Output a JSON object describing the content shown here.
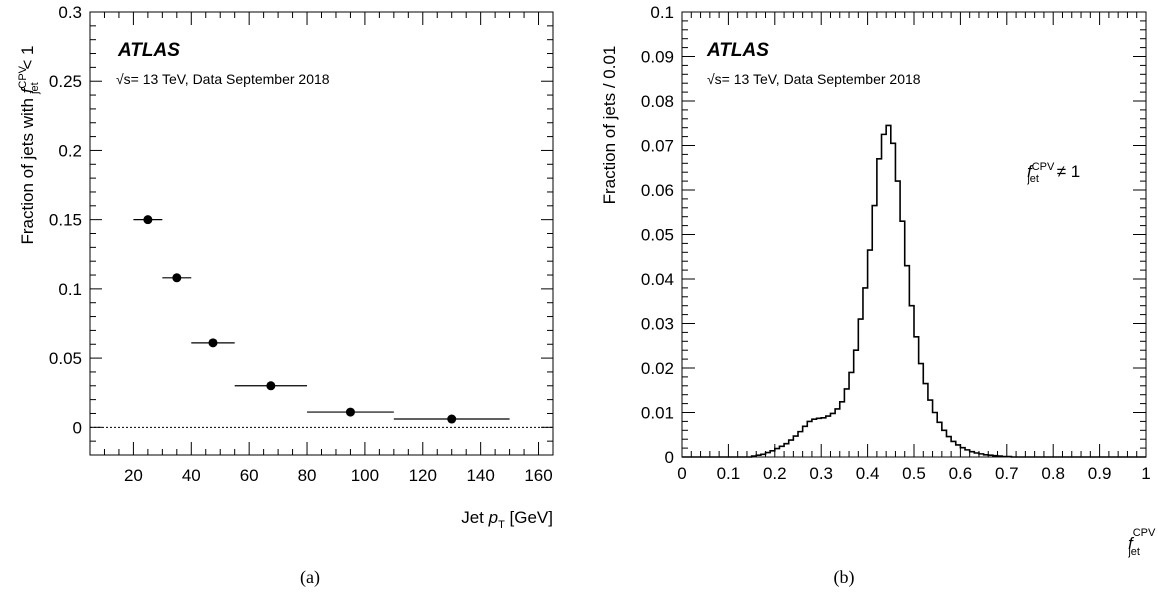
{
  "chart_data": [
    {
      "type": "scatter",
      "caption": "(a)",
      "experiment": "ATLAS",
      "info": "√s= 13 TeV, Data September 2018",
      "xlabel": {
        "main": "Jet ",
        "var": "p",
        "sub": "T",
        "unit": " [GeV]"
      },
      "ylabel": {
        "pre": "Fraction of jets with ",
        "var": "f",
        "sup": "CPV",
        "sub": "jet",
        "post": " < 1"
      },
      "xlim": [
        5,
        165
      ],
      "ylim": [
        -0.02,
        0.3
      ],
      "xticks": [
        20,
        40,
        60,
        80,
        100,
        120,
        140,
        160
      ],
      "yticks": [
        0,
        0.05,
        0.1,
        0.15,
        0.2,
        0.25,
        0.3
      ],
      "ytick_labels": [
        "0",
        "0.05",
        "0.1",
        "0.15",
        "0.2",
        "0.25",
        "0.3"
      ],
      "reference_line_y": 0,
      "points": [
        {
          "x": 25,
          "xerr": [
            20,
            30
          ],
          "y": 0.15
        },
        {
          "x": 35,
          "xerr": [
            30,
            40
          ],
          "y": 0.108
        },
        {
          "x": 47.5,
          "xerr": [
            40,
            55
          ],
          "y": 0.061
        },
        {
          "x": 67.5,
          "xerr": [
            55,
            80
          ],
          "y": 0.03
        },
        {
          "x": 95,
          "xerr": [
            80,
            110
          ],
          "y": 0.011
        },
        {
          "x": 130,
          "xerr": [
            110,
            150
          ],
          "y": 0.006
        }
      ]
    },
    {
      "type": "histogram",
      "caption": "(b)",
      "experiment": "ATLAS",
      "info": "√s= 13 TeV, Data September 2018",
      "ylabel": "Fraction of jets / 0.01",
      "xlabel": {
        "var": "f",
        "sup": "CPV",
        "sub": "jet"
      },
      "annotation": {
        "var": "f",
        "sup": "CPV",
        "sub": "jet",
        "post": " ≠ 1"
      },
      "xlim": [
        0,
        1
      ],
      "ylim": [
        0,
        0.1
      ],
      "xticks": [
        0,
        0.1,
        0.2,
        0.3,
        0.4,
        0.5,
        0.6,
        0.7,
        0.8,
        0.9,
        1
      ],
      "xtick_labels": [
        "0",
        "0.1",
        "0.2",
        "0.3",
        "0.4",
        "0.5",
        "0.6",
        "0.7",
        "0.8",
        "0.9",
        "1"
      ],
      "yticks": [
        0,
        0.01,
        0.02,
        0.03,
        0.04,
        0.05,
        0.06,
        0.07,
        0.08,
        0.09,
        0.1
      ],
      "ytick_labels": [
        "0",
        "0.01",
        "0.02",
        "0.03",
        "0.04",
        "0.05",
        "0.06",
        "0.07",
        "0.08",
        "0.09",
        "0.1"
      ],
      "bin_edges_start": 0.15,
      "bin_width": 0.01,
      "values": [
        0.0002,
        0.0004,
        0.0006,
        0.001,
        0.0014,
        0.0019,
        0.0024,
        0.003,
        0.0038,
        0.0047,
        0.0057,
        0.0069,
        0.008,
        0.0085,
        0.0087,
        0.0088,
        0.0092,
        0.0098,
        0.0108,
        0.0124,
        0.0153,
        0.019,
        0.024,
        0.031,
        0.038,
        0.0465,
        0.0565,
        0.067,
        0.0725,
        0.0745,
        0.0705,
        0.062,
        0.053,
        0.043,
        0.034,
        0.027,
        0.021,
        0.0165,
        0.0128,
        0.01,
        0.0078,
        0.006,
        0.0046,
        0.0035,
        0.0027,
        0.0021,
        0.0016,
        0.0012,
        0.0009,
        0.0007,
        0.0005,
        0.0004,
        0.0003,
        0.0002,
        0.0001,
        0.0001,
        0.0,
        0.0,
        0.0,
        0.0
      ]
    }
  ]
}
